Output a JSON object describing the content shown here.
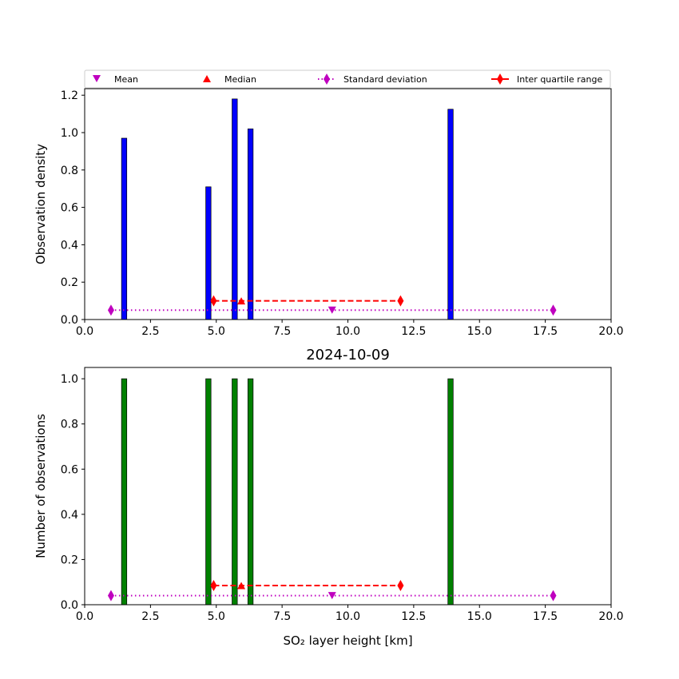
{
  "legend": {
    "items": [
      {
        "label": "Mean",
        "color": "#bf00bf",
        "marker": "triangle-down"
      },
      {
        "label": "Median",
        "color": "#ff0000",
        "marker": "triangle-up"
      },
      {
        "label": "Standard deviation",
        "color": "#bf00bf",
        "marker": "thin-diamond",
        "line": "dotted"
      },
      {
        "label": "Inter quartile range",
        "color": "#ff0000",
        "marker": "thin-diamond",
        "line": "dashed"
      }
    ]
  },
  "chart_data": [
    {
      "type": "bar",
      "title": "",
      "xlabel": "",
      "ylabel": "Observation density",
      "xlim": [
        0,
        20
      ],
      "ylim": [
        0,
        1.235
      ],
      "xticks": [
        "0.0",
        "2.5",
        "5.0",
        "7.5",
        "10.0",
        "12.5",
        "15.0",
        "17.5",
        "20.0"
      ],
      "xtick_values": [
        0,
        2.5,
        5,
        7.5,
        10,
        12.5,
        15,
        17.5,
        20
      ],
      "yticks": [
        "0.0",
        "0.2",
        "0.4",
        "0.6",
        "0.8",
        "1.0",
        "1.2"
      ],
      "ytick_values": [
        0,
        0.2,
        0.4,
        0.6,
        0.8,
        1.0,
        1.2
      ],
      "bar_color": "#0000ff",
      "bars": [
        {
          "x0": 1.4,
          "x1": 1.6,
          "value": 0.97
        },
        {
          "x0": 4.6,
          "x1": 4.8,
          "value": 0.71
        },
        {
          "x0": 5.6,
          "x1": 5.8,
          "value": 1.18
        },
        {
          "x0": 6.2,
          "x1": 6.4,
          "value": 1.02
        },
        {
          "x0": 13.8,
          "x1": 14.0,
          "value": 1.125
        }
      ],
      "stats": {
        "mean": {
          "x": 9.4,
          "y": 0.05
        },
        "median": {
          "x": 5.95,
          "y": 0.1
        },
        "std": {
          "x": [
            1.0,
            17.8
          ],
          "y": 0.05
        },
        "iqr": {
          "x": [
            4.9,
            12.0
          ],
          "y": 0.1
        }
      }
    },
    {
      "type": "bar",
      "title": "2024-10-09",
      "xlabel": "SO₂ layer height [km]",
      "ylabel": "Number of observations",
      "xlim": [
        0,
        20
      ],
      "ylim": [
        0,
        1.05
      ],
      "xticks": [
        "0.0",
        "2.5",
        "5.0",
        "7.5",
        "10.0",
        "12.5",
        "15.0",
        "17.5",
        "20.0"
      ],
      "xtick_values": [
        0,
        2.5,
        5,
        7.5,
        10,
        12.5,
        15,
        17.5,
        20
      ],
      "yticks": [
        "0.0",
        "0.2",
        "0.4",
        "0.6",
        "0.8",
        "1.0"
      ],
      "ytick_values": [
        0,
        0.2,
        0.4,
        0.6,
        0.8,
        1.0
      ],
      "bar_color": "#008000",
      "bars": [
        {
          "x0": 1.4,
          "x1": 1.6,
          "value": 1
        },
        {
          "x0": 4.6,
          "x1": 4.8,
          "value": 1
        },
        {
          "x0": 5.6,
          "x1": 5.8,
          "value": 1
        },
        {
          "x0": 6.2,
          "x1": 6.4,
          "value": 1
        },
        {
          "x0": 13.8,
          "x1": 14.0,
          "value": 1
        }
      ],
      "stats": {
        "mean": {
          "x": 9.4,
          "y": 0.04
        },
        "median": {
          "x": 5.95,
          "y": 0.085
        },
        "std": {
          "x": [
            1.0,
            17.8
          ],
          "y": 0.04
        },
        "iqr": {
          "x": [
            4.9,
            12.0
          ],
          "y": 0.085
        }
      }
    }
  ]
}
